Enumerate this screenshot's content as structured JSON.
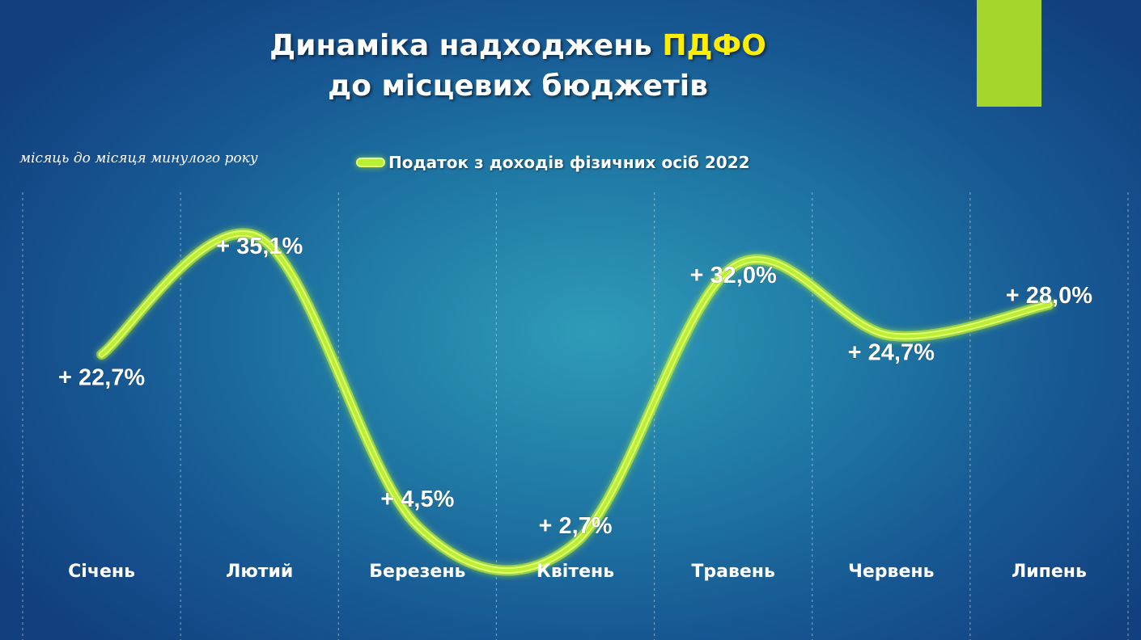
{
  "header": {
    "title_line1": "Динаміка надходжень ",
    "title_highlight": "ПДФО",
    "title_line2": "до місцевих бюджетів",
    "subtitle": "місяць до місяця минулого року"
  },
  "colors": {
    "accent_bar": "#a5d62c",
    "highlight_text": "#ffee00",
    "line": "#b9ef34"
  },
  "chart_data": {
    "type": "line",
    "categories": [
      "Січень",
      "Лютий",
      "Березень",
      "Квітень",
      "Травень",
      "Червень",
      "Липень"
    ],
    "series": [
      {
        "name": "Податок з доходів фізичних осіб 2022",
        "values": [
          22.7,
          35.1,
          4.5,
          2.7,
          32.0,
          24.7,
          28.0
        ],
        "labels": [
          "+ 22,7%",
          "+ 35,1%",
          "+ 4,5%",
          "+ 2,7%",
          "+ 32,0%",
          "+ 24,7%",
          "+ 28,0%"
        ]
      }
    ],
    "xlabel": "",
    "ylabel": "",
    "grid": "vertical-dashed",
    "legend": "top-center"
  }
}
